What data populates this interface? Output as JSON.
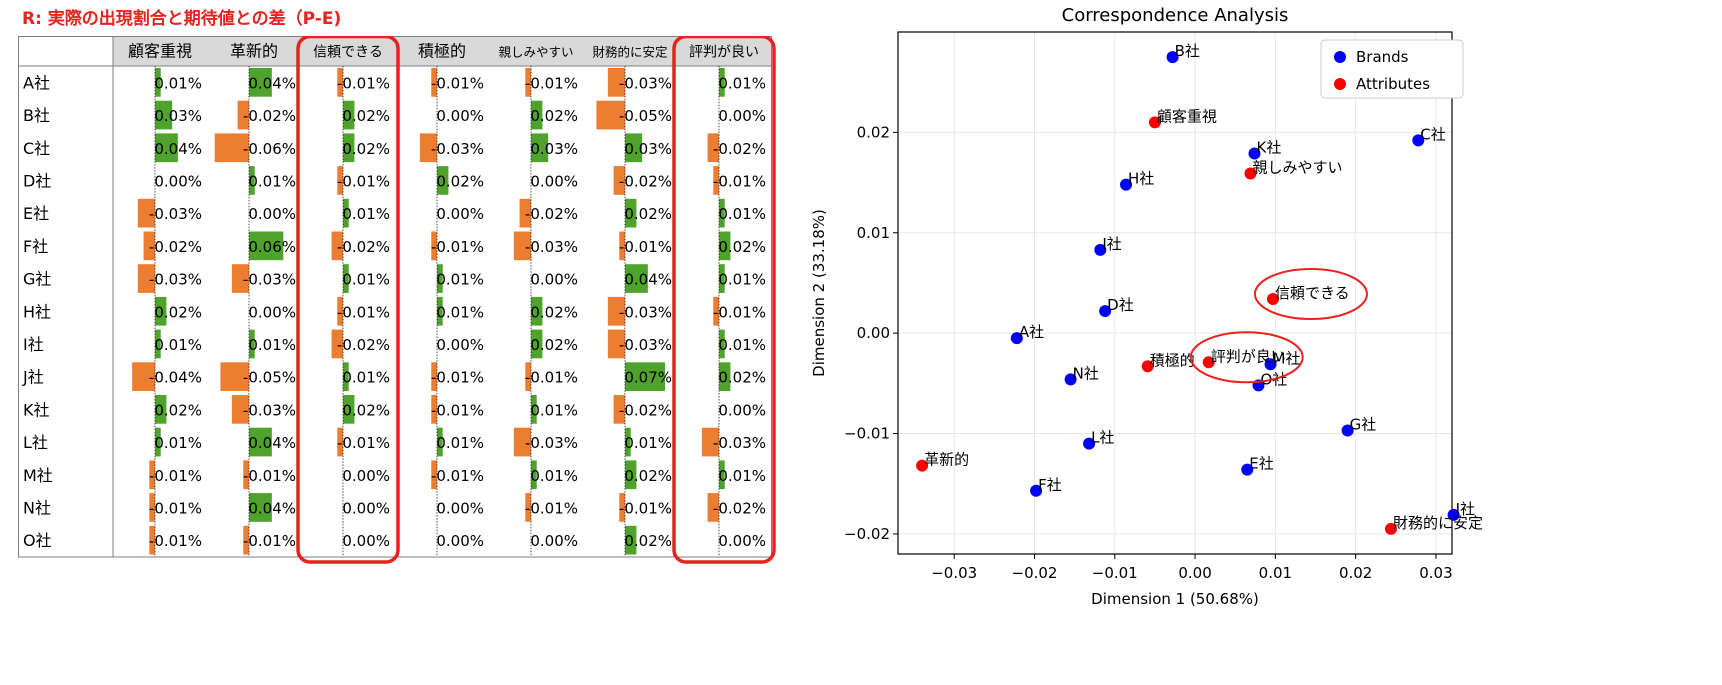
{
  "table": {
    "title": "R: 実際の出現割合と期待値との差（P-E)",
    "columns": [
      "顧客重視",
      "革新的",
      "信頼できる",
      "積極的",
      "親しみやすい",
      "財務的に安定",
      "評判が良い"
    ],
    "highlighted_columns": [
      "信頼できる",
      "評判が良い"
    ],
    "colors": {
      "positive": "#4fa32d",
      "negative": "#ed7d31",
      "highlight": "#e8221e",
      "header_bg": "#d9d9d9"
    },
    "rows": [
      {
        "label": "A社",
        "cells": [
          "0.01%",
          "0.04%",
          "-0.01%",
          "-0.01%",
          "-0.01%",
          "-0.03%",
          "0.01%"
        ],
        "values": [
          0.01,
          0.04,
          -0.01,
          -0.01,
          -0.01,
          -0.03,
          0.01
        ]
      },
      {
        "label": "B社",
        "cells": [
          "0.03%",
          "-0.02%",
          "0.02%",
          "0.00%",
          "0.02%",
          "-0.05%",
          "0.00%"
        ],
        "values": [
          0.03,
          -0.02,
          0.02,
          0.0,
          0.02,
          -0.05,
          0.0
        ]
      },
      {
        "label": "C社",
        "cells": [
          "0.04%",
          "-0.06%",
          "0.02%",
          "-0.03%",
          "0.03%",
          "0.03%",
          "-0.02%"
        ],
        "values": [
          0.04,
          -0.06,
          0.02,
          -0.03,
          0.03,
          0.03,
          -0.02
        ]
      },
      {
        "label": "D社",
        "cells": [
          "0.00%",
          "0.01%",
          "-0.01%",
          "0.02%",
          "0.00%",
          "-0.02%",
          "-0.01%"
        ],
        "values": [
          0.0,
          0.01,
          -0.01,
          0.02,
          0.0,
          -0.02,
          -0.01
        ]
      },
      {
        "label": "E社",
        "cells": [
          "-0.03%",
          "0.00%",
          "0.01%",
          "0.00%",
          "-0.02%",
          "0.02%",
          "0.01%"
        ],
        "values": [
          -0.03,
          0.0,
          0.01,
          0.0,
          -0.02,
          0.02,
          0.01
        ]
      },
      {
        "label": "F社",
        "cells": [
          "-0.02%",
          "0.06%",
          "-0.02%",
          "-0.01%",
          "-0.03%",
          "-0.01%",
          "0.02%"
        ],
        "values": [
          -0.02,
          0.06,
          -0.02,
          -0.01,
          -0.03,
          -0.01,
          0.02
        ]
      },
      {
        "label": "G社",
        "cells": [
          "-0.03%",
          "-0.03%",
          "0.01%",
          "0.01%",
          "0.00%",
          "0.04%",
          "0.01%"
        ],
        "values": [
          -0.03,
          -0.03,
          0.01,
          0.01,
          0.0,
          0.04,
          0.01
        ]
      },
      {
        "label": "H社",
        "cells": [
          "0.02%",
          "0.00%",
          "-0.01%",
          "0.01%",
          "0.02%",
          "-0.03%",
          "-0.01%"
        ],
        "values": [
          0.02,
          0.0,
          -0.01,
          0.01,
          0.02,
          -0.03,
          -0.01
        ]
      },
      {
        "label": "I社",
        "cells": [
          "0.01%",
          "0.01%",
          "-0.02%",
          "0.00%",
          "0.02%",
          "-0.03%",
          "0.01%"
        ],
        "values": [
          0.01,
          0.01,
          -0.02,
          0.0,
          0.02,
          -0.03,
          0.01
        ]
      },
      {
        "label": "J社",
        "cells": [
          "-0.04%",
          "-0.05%",
          "0.01%",
          "-0.01%",
          "-0.01%",
          "0.07%",
          "0.02%"
        ],
        "values": [
          -0.04,
          -0.05,
          0.01,
          -0.01,
          -0.01,
          0.07,
          0.02
        ]
      },
      {
        "label": "K社",
        "cells": [
          "0.02%",
          "-0.03%",
          "0.02%",
          "-0.01%",
          "0.01%",
          "-0.02%",
          "0.00%"
        ],
        "values": [
          0.02,
          -0.03,
          0.02,
          -0.01,
          0.01,
          -0.02,
          0.0
        ]
      },
      {
        "label": "L社",
        "cells": [
          "0.01%",
          "0.04%",
          "-0.01%",
          "0.01%",
          "-0.03%",
          "0.01%",
          "-0.03%"
        ],
        "values": [
          0.01,
          0.04,
          -0.01,
          0.01,
          -0.03,
          0.01,
          -0.03
        ]
      },
      {
        "label": "M社",
        "cells": [
          "-0.01%",
          "-0.01%",
          "0.00%",
          "-0.01%",
          "0.01%",
          "0.02%",
          "0.01%"
        ],
        "values": [
          -0.01,
          -0.01,
          0.0,
          -0.01,
          0.01,
          0.02,
          0.01
        ]
      },
      {
        "label": "N社",
        "cells": [
          "-0.01%",
          "0.04%",
          "0.00%",
          "0.00%",
          "-0.01%",
          "-0.01%",
          "-0.02%"
        ],
        "values": [
          -0.01,
          0.04,
          0.0,
          0.0,
          -0.01,
          -0.01,
          -0.02
        ]
      },
      {
        "label": "O社",
        "cells": [
          "-0.01%",
          "-0.01%",
          "0.00%",
          "0.00%",
          "0.00%",
          "0.02%",
          "0.00%"
        ],
        "values": [
          -0.01,
          -0.01,
          0.0,
          0.0,
          0.0,
          0.02,
          0.0
        ]
      }
    ]
  },
  "chart_data": [
    {
      "type": "table",
      "title": "R: 実際の出現割合と期待値との差（P-E)",
      "columns": [
        "顧客重視",
        "革新的",
        "信頼できる",
        "積極的",
        "親しみやすい",
        "財務的に安定",
        "評判が良い"
      ],
      "row_labels": [
        "A社",
        "B社",
        "C社",
        "D社",
        "E社",
        "F社",
        "G社",
        "H社",
        "I社",
        "J社",
        "K社",
        "L社",
        "M社",
        "N社",
        "O社"
      ],
      "unit": "%"
    },
    {
      "type": "scatter",
      "title": "Correspondence Analysis",
      "xlabel": "Dimension 1 (50.68%)",
      "ylabel": "Dimension 2 (33.18%)",
      "xlim": [
        -0.037,
        0.032
      ],
      "ylim": [
        -0.022,
        0.03
      ],
      "xticks": [
        -0.03,
        -0.02,
        -0.01,
        0.0,
        0.01,
        0.02,
        0.03
      ],
      "xtick_labels": [
        "−0.03",
        "−0.02",
        "−0.01",
        "0.00",
        "0.01",
        "0.02",
        "0.03"
      ],
      "yticks": [
        -0.02,
        -0.01,
        0.0,
        0.01,
        0.02
      ],
      "ytick_labels": [
        "−0.02",
        "−0.01",
        "0.00",
        "0.01",
        "0.02"
      ],
      "grid": true,
      "legend_position": "top-right",
      "series": [
        {
          "name": "Brands",
          "color": "#0000ff",
          "points": [
            {
              "label": "A社",
              "x": -0.0222,
              "y": -0.0005
            },
            {
              "label": "B社",
              "x": -0.0028,
              "y": 0.0275
            },
            {
              "label": "C社",
              "x": 0.0278,
              "y": 0.0192
            },
            {
              "label": "D社",
              "x": -0.0112,
              "y": 0.0022
            },
            {
              "label": "E社",
              "x": 0.0065,
              "y": -0.0136
            },
            {
              "label": "F社",
              "x": -0.0198,
              "y": -0.0157
            },
            {
              "label": "G社",
              "x": 0.019,
              "y": -0.0097
            },
            {
              "label": "H社",
              "x": -0.0086,
              "y": 0.0148
            },
            {
              "label": "I社",
              "x": -0.0118,
              "y": 0.0083
            },
            {
              "label": "J社",
              "x": 0.0322,
              "y": -0.0181
            },
            {
              "label": "K社",
              "x": 0.0074,
              "y": 0.0179
            },
            {
              "label": "L社",
              "x": -0.0132,
              "y": -0.011
            },
            {
              "label": "M社",
              "x": 0.0094,
              "y": -0.0031
            },
            {
              "label": "N社",
              "x": -0.0155,
              "y": -0.0046
            },
            {
              "label": "O社",
              "x": 0.0079,
              "y": -0.0052
            }
          ]
        },
        {
          "name": "Attributes",
          "color": "#ff0000",
          "points": [
            {
              "label": "顧客重視",
              "x": -0.005,
              "y": 0.021
            },
            {
              "label": "革新的",
              "x": -0.034,
              "y": -0.0132
            },
            {
              "label": "信頼できる",
              "x": 0.0097,
              "y": 0.0034
            },
            {
              "label": "積極的",
              "x": -0.0059,
              "y": -0.0033
            },
            {
              "label": "親しみやすい",
              "x": 0.0069,
              "y": 0.0159
            },
            {
              "label": "財務的に安定",
              "x": 0.0244,
              "y": -0.0195
            },
            {
              "label": "評判が良い",
              "x": 0.0017,
              "y": -0.0029
            }
          ]
        }
      ],
      "highlight_circles": [
        "信頼できる",
        "評判が良い"
      ],
      "highlight_color": "#e8221e"
    }
  ]
}
